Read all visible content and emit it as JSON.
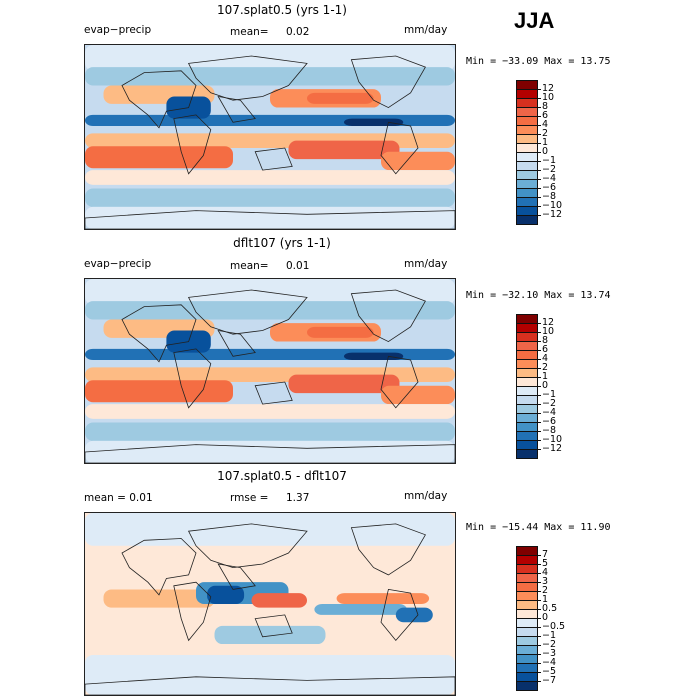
{
  "season": "JJA",
  "panels": [
    {
      "title": "107.splat0.5 (yrs 1-1)",
      "left_label": "evap−precip",
      "mean_label": "mean=",
      "mean_value": "0.02",
      "units": "mm/day",
      "minmax": "Min = −33.09 Max =   13.75",
      "colorbar_labels": [
        "12",
        "10",
        "8",
        "6",
        "4",
        "2",
        "1",
        "0",
        "−1",
        "−2",
        "−4",
        "−6",
        "−8",
        "−10",
        "−12"
      ]
    },
    {
      "title": "dflt107 (yrs 1-1)",
      "left_label": "evap−precip",
      "mean_label": "mean=",
      "mean_value": "0.01",
      "units": "mm/day",
      "minmax": "Min = −32.10 Max =   13.74",
      "colorbar_labels": [
        "12",
        "10",
        "8",
        "6",
        "4",
        "2",
        "1",
        "0",
        "−1",
        "−2",
        "−4",
        "−6",
        "−8",
        "−10",
        "−12"
      ]
    },
    {
      "title": "107.splat0.5 - dflt107",
      "left_label": "mean =   0.01",
      "mean_label": "rmse =",
      "mean_value": "1.37",
      "units": "mm/day",
      "minmax": "Min = −15.44 Max =   11.90",
      "colorbar_labels": [
        "7",
        "5",
        "4",
        "3",
        "2",
        "1",
        "0.5",
        "0",
        "−0.5",
        "−1",
        "−2",
        "−3",
        "−4",
        "−5",
        "−7"
      ]
    }
  ],
  "colors": {
    "scale": [
      "#7f0000",
      "#b30000",
      "#d7301f",
      "#ef6548",
      "#f46d43",
      "#fc8d59",
      "#fdbb84",
      "#fee8d8",
      "#deebf7",
      "#c6dbef",
      "#9ecae1",
      "#6baed6",
      "#4292c6",
      "#2171b5",
      "#08519c",
      "#08306b"
    ],
    "land": "#e6f0fa"
  }
}
